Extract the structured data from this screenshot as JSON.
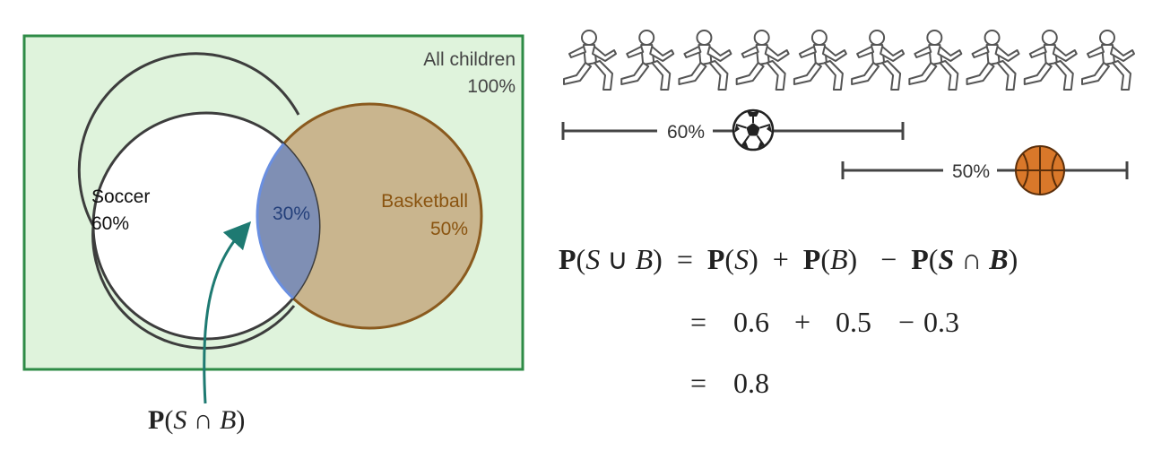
{
  "venn": {
    "universe": {
      "label": "All children",
      "value": "100%"
    },
    "soccer": {
      "label": "Soccer",
      "value": "60%"
    },
    "basketball": {
      "label": "Basketball",
      "value": "50%"
    },
    "intersection": {
      "value": "30%"
    },
    "pointer_label": {
      "P": "P",
      "open": "(",
      "S": "S",
      "op": " ∩ ",
      "B": "B",
      "close": ")"
    }
  },
  "colors": {
    "universe_fill": "#dff3dc",
    "universe_border": "#2e8b46",
    "soccer_fill": "#ffffff",
    "soccer_border": "#3d3d3d",
    "basketball_fill": "#c9b58e",
    "basketball_border": "#8a5a1e",
    "basketball_text": "#8a5410",
    "intersection_fill": "#7f8fb4",
    "intersection_border": "#6a8fe0",
    "intersection_text": "#233f7a",
    "arrow": "#1e7a72",
    "runner_fill": "#ffffff",
    "runner_stroke": "#555555",
    "ball_orange": "#d9782a"
  },
  "runners": {
    "count": 10,
    "icon": "running-child-icon"
  },
  "bars": [
    {
      "label": "60%",
      "icon": "soccer-ball-icon",
      "fraction": 0.6
    },
    {
      "label": "50%",
      "icon": "basketball-icon",
      "fraction": 0.5
    }
  ],
  "formula": {
    "line1": {
      "lhs": {
        "P": "P",
        "open": "(",
        "S": "S",
        "op": " ∪ ",
        "B": "B",
        "close": ")"
      },
      "eq": "=",
      "t1": {
        "P": "P",
        "open": "(",
        "S": "S",
        "close": ")"
      },
      "plus": "+",
      "t2": {
        "P": "P",
        "open": "(",
        "B": "B",
        "close": ")"
      },
      "minus": "−",
      "t3": {
        "P": "P",
        "open": "(",
        "S": "S",
        "op": " ∩ ",
        "B": "B",
        "close": ")"
      }
    },
    "line2": {
      "eq": "=",
      "a": "0.6",
      "plus": "+",
      "b": "0.5",
      "minus": "−",
      "c": "0.3"
    },
    "line3": {
      "eq": "=",
      "result": "0.8"
    }
  }
}
